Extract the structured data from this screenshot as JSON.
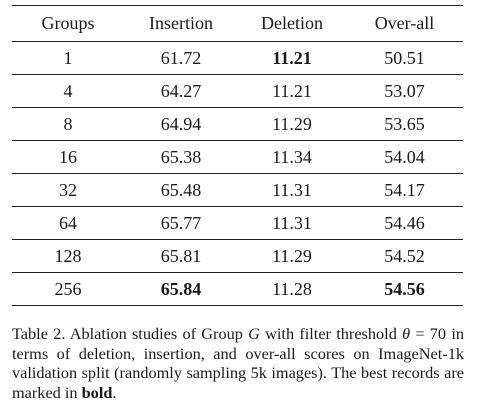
{
  "table": {
    "headers": [
      "Groups",
      "Insertion",
      "Deletion",
      "Over-all"
    ],
    "rows": [
      {
        "cells": [
          "1",
          "61.72",
          "11.21",
          "50.51"
        ],
        "bold": [
          false,
          false,
          true,
          false
        ]
      },
      {
        "cells": [
          "4",
          "64.27",
          "11.21",
          "53.07"
        ],
        "bold": [
          false,
          false,
          false,
          false
        ]
      },
      {
        "cells": [
          "8",
          "64.94",
          "11.29",
          "53.65"
        ],
        "bold": [
          false,
          false,
          false,
          false
        ]
      },
      {
        "cells": [
          "16",
          "65.38",
          "11.34",
          "54.04"
        ],
        "bold": [
          false,
          false,
          false,
          false
        ]
      },
      {
        "cells": [
          "32",
          "65.48",
          "11.31",
          "54.17"
        ],
        "bold": [
          false,
          false,
          false,
          false
        ]
      },
      {
        "cells": [
          "64",
          "65.77",
          "11.31",
          "54.46"
        ],
        "bold": [
          false,
          false,
          false,
          false
        ]
      },
      {
        "cells": [
          "128",
          "65.81",
          "11.29",
          "54.52"
        ],
        "bold": [
          false,
          false,
          false,
          false
        ]
      },
      {
        "cells": [
          "256",
          "65.84",
          "11.28",
          "54.56"
        ],
        "bold": [
          false,
          true,
          false,
          true
        ]
      }
    ]
  },
  "caption": {
    "prefix": "Table 2. Ablation studies of Group ",
    "var_g": "G",
    "mid": " with filter threshold ",
    "theta": "θ",
    "eq": " = 70",
    "rest": " in terms of deletion, insertion, and over-all scores on ImageNet-1k validation split (randomly sampling 5k images). The best records are marked in ",
    "bold_word": "bold",
    "end": "."
  }
}
